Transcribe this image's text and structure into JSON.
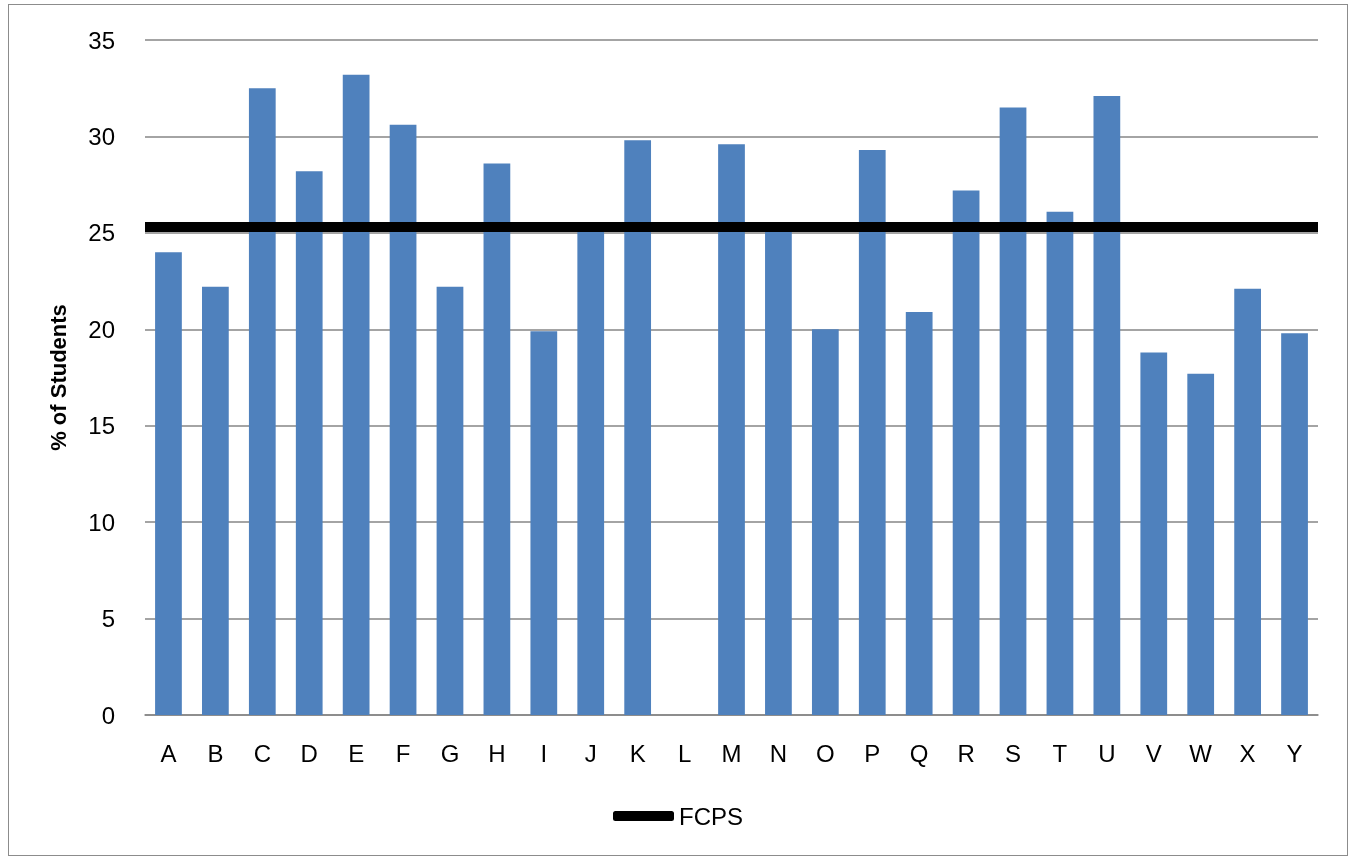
{
  "chart_data": {
    "type": "bar",
    "ylabel": "% of Students",
    "categories": [
      "A",
      "B",
      "C",
      "D",
      "E",
      "F",
      "G",
      "H",
      "I",
      "J",
      "K",
      "L",
      "M",
      "N",
      "O",
      "P",
      "Q",
      "R",
      "S",
      "T",
      "U",
      "V",
      "W",
      "X",
      "Y"
    ],
    "values": [
      24.0,
      22.2,
      32.5,
      28.2,
      33.2,
      30.6,
      22.2,
      28.6,
      19.9,
      25.2,
      29.8,
      null,
      29.6,
      25.2,
      20.0,
      29.3,
      20.9,
      27.2,
      31.5,
      26.1,
      32.1,
      18.8,
      17.7,
      22.1,
      19.8
    ],
    "color": "#4f81bd",
    "ylim": [
      0,
      35
    ],
    "yticks": [
      0,
      5,
      10,
      15,
      20,
      25,
      30,
      35
    ],
    "grid": "y",
    "legend": "bottom",
    "ref_lines": [
      {
        "axis": "y",
        "value": 25.3,
        "label": "FCPS",
        "color": "#000000"
      }
    ]
  }
}
